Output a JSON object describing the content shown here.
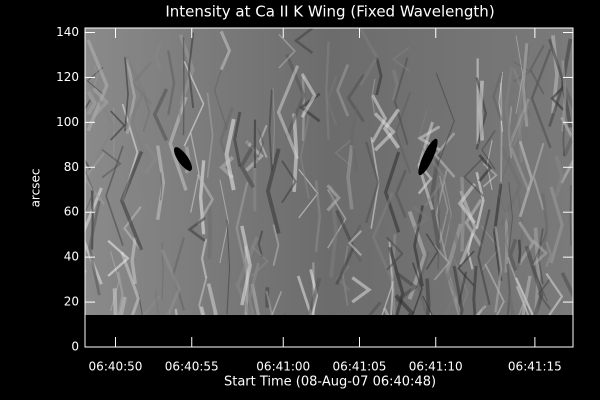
{
  "chart_data": {
    "type": "image",
    "title": "Intensity at Ca II K Wing (Fixed Wavelength)",
    "xlabel": "Start Time (08-Aug-07 06:40:48)",
    "ylabel": "arcsec",
    "xlim": [
      0,
      32
    ],
    "xticks": [
      {
        "value": 2,
        "label": "06:40:50"
      },
      {
        "value": 7,
        "label": "06:40:55"
      },
      {
        "value": 13,
        "label": "06:41:00"
      },
      {
        "value": 18,
        "label": "06:41:05"
      },
      {
        "value": 23,
        "label": "06:41:10"
      },
      {
        "value": 29.5,
        "label": "06:41:15"
      }
    ],
    "ylim": [
      0,
      142
    ],
    "yticks": [
      0,
      20,
      40,
      60,
      80,
      100,
      120,
      140
    ],
    "background": "#000000",
    "foreground": "#ffffff"
  }
}
